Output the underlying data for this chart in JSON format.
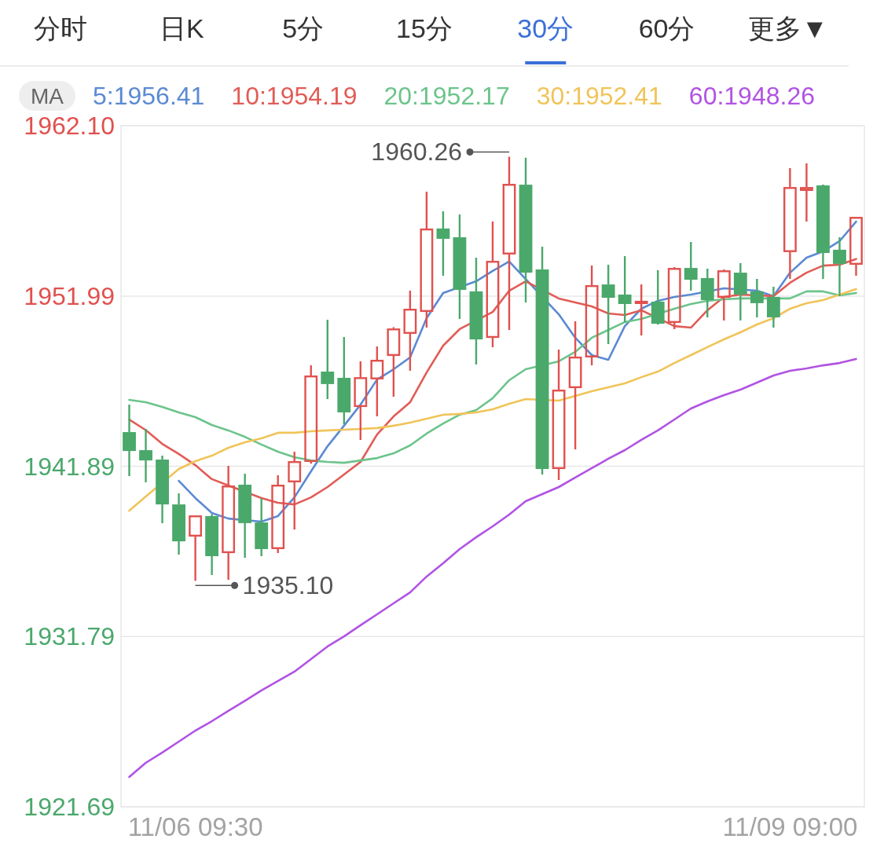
{
  "chart_data": {
    "type": "candlestick",
    "annotations": [
      "分时",
      "日K",
      "5分",
      "15分",
      "30分",
      "60分",
      "更多▼",
      "1960.26",
      "1935.10"
    ],
    "legend_title": "MA",
    "legend": "top",
    "grid": "y",
    "categories": [
      null,
      null,
      null,
      null,
      "11/06 09:30",
      null,
      null,
      null,
      null,
      null,
      null,
      null,
      null,
      null,
      null,
      null,
      null,
      null,
      null,
      null,
      null,
      null,
      null,
      null,
      null,
      null,
      null,
      null,
      null,
      null,
      null,
      null,
      null,
      null,
      null,
      null,
      null,
      null,
      null,
      null,
      "11/09 09:00",
      null,
      null,
      null,
      null
    ],
    "ylim": [
      1921.69,
      1962.1
    ],
    "yticks": [
      1921.69,
      1931.79,
      1941.89,
      1951.99,
      {
        "value": 1962.1,
        "label": "1962.10"
      }
    ],
    "ohlc": [
      [
        1943.92,
        1945.55,
        1941.31,
        1942.8
      ],
      [
        1942.85,
        1944.11,
        1940.94,
        1942.24
      ],
      [
        1942.29,
        1942.52,
        1938.52,
        1939.63
      ],
      [
        1939.63,
        1940.29,
        1936.65,
        1937.44
      ],
      [
        1937.72,
        1938.98,
        1935.1,
        1938.98
      ],
      [
        1938.94,
        1939.05,
        1935.44,
        1936.56
      ],
      [
        1936.74,
        1941.92,
        1935.16,
        1940.75
      ],
      [
        1940.8,
        1941.45,
        1936.46,
        1938.52
      ],
      [
        1938.56,
        1940.0,
        1936.56,
        1936.98
      ],
      [
        1936.98,
        1941.36,
        1936.74,
        1940.8
      ],
      [
        1940.94,
        1942.76,
        1938.14,
        1942.2
      ],
      [
        1942.15,
        1947.88,
        1942.05,
        1947.28
      ],
      [
        1947.51,
        1950.59,
        1945.88,
        1946.77
      ],
      [
        1947.14,
        1949.56,
        1944.39,
        1945.09
      ],
      [
        1945.41,
        1948.12,
        1943.46,
        1947.18
      ],
      [
        1947.05,
        1949.0,
        1944.85,
        1948.21
      ],
      [
        1948.44,
        1950.15,
        1946.02,
        1950.07
      ],
      [
        1949.75,
        1952.31,
        1947.56,
        1951.24
      ],
      [
        1951.05,
        1958.18,
        1950.12,
        1956.0
      ],
      [
        1956.0,
        1957.02,
        1953.2,
        1955.39
      ],
      [
        1955.48,
        1956.83,
        1950.63,
        1952.36
      ],
      [
        1952.27,
        1954.27,
        1947.93,
        1949.42
      ],
      [
        1949.51,
        1956.41,
        1948.96,
        1954.08
      ],
      [
        1954.46,
        1960.26,
        1949.98,
        1958.65
      ],
      [
        1958.6,
        1960.2,
        1951.61,
        1953.38
      ],
      [
        1953.57,
        1954.92,
        1941.41,
        1941.73
      ],
      [
        1941.73,
        1948.82,
        1941.08,
        1946.44
      ],
      [
        1946.53,
        1950.49,
        1942.9,
        1948.4
      ],
      [
        1948.35,
        1953.8,
        1947.88,
        1952.64
      ],
      [
        1952.68,
        1953.85,
        1949.14,
        1951.89
      ],
      [
        1952.08,
        1954.36,
        1950.45,
        1951.52
      ],
      [
        1951.52,
        1952.68,
        1949.66,
        1951.71
      ],
      [
        1951.66,
        1953.52,
        1950.3,
        1950.35
      ],
      [
        1950.4,
        1953.71,
        1950.03,
        1953.66
      ],
      [
        1953.66,
        1955.2,
        1952.31,
        1952.96
      ],
      [
        1953.06,
        1953.62,
        1950.73,
        1951.75
      ],
      [
        1951.89,
        1953.57,
        1950.54,
        1953.52
      ],
      [
        1953.38,
        1953.94,
        1950.54,
        1952.08
      ],
      [
        1952.27,
        1953.01,
        1950.73,
        1951.57
      ],
      [
        1951.94,
        1952.54,
        1950.12,
        1950.73
      ],
      [
        1954.6,
        1959.58,
        1953.01,
        1958.46
      ],
      [
        1958.23,
        1959.86,
        1956.41,
        1958.46
      ],
      [
        1958.56,
        1958.6,
        1953.01,
        1954.55
      ],
      [
        1954.74,
        1955.48,
        1951.99,
        1953.9
      ],
      [
        1953.85,
        1956.69,
        1953.2,
        1956.69
      ]
    ],
    "series": [
      {
        "name": "5:1956.41",
        "type": "line",
        "color": "#5b8ad3",
        "values": [
          null,
          null,
          null,
          1941.03,
          1940.01,
          1939.12,
          1938.79,
          null,
          1938.61,
          1938.94,
          1940.05,
          1941.59,
          1943.08,
          1944.3,
          1945.55,
          1947.04,
          1947.65,
          1948.35,
          1950.68,
          1952.17,
          null,
          1952.87,
          1953.48,
          1954.04,
          null,
          null,
          1950.91,
          1949.52,
          1948.49,
          1948.21,
          1950.21,
          1951.24,
          1951.71,
          1951.94,
          1952.08,
          null,
          1952.45,
          null,
          1952.31,
          1951.99,
          1953.38,
          1954.27,
          1954.64,
          1955.25,
          1956.41
        ]
      },
      {
        "name": "10:1954.19",
        "type": "line",
        "color": "#e15c57",
        "values": [
          1944.66,
          1944.04,
          1943.22,
          1942.62,
          1941.96,
          1941.13,
          1940.75,
          null,
          1940.01,
          1939.73,
          1939.63,
          1940.05,
          1940.66,
          1941.41,
          1942.15,
          1943.78,
          1944.85,
          1945.69,
          1947.46,
          1949.05,
          1950.03,
          null,
          1951.05,
          1952.31,
          1952.87,
          null,
          1951.85,
          1951.61,
          1951.38,
          1950.96,
          1950.87,
          1951.15,
          null,
          1950.21,
          1950.12,
          1951.15,
          1951.94,
          1952.08,
          null,
          1951.99,
          1952.78,
          1953.38,
          1953.8,
          1953.85,
          1954.19
        ]
      },
      {
        "name": "20:1952.17",
        "type": "line",
        "color": "#6cc48b",
        "values": [
          1945.83,
          1945.69,
          1945.41,
          1945.09,
          1944.81,
          1944.34,
          1944.02,
          1943.64,
          1943.18,
          1942.76,
          1942.43,
          1942.24,
          1942.15,
          1942.1,
          1942.24,
          1942.38,
          1942.66,
          1943.13,
          1943.83,
          1944.43,
          1944.95,
          1945.23,
          1945.93,
          1947.0,
          1947.65,
          null,
          1948.12,
          1948.68,
          1949.52,
          1949.98,
          1950.45,
          1950.63,
          null,
          1951.24,
          1951.52,
          1951.71,
          1951.8,
          1951.85,
          null,
          null,
          1951.85,
          1952.27,
          1952.27,
          1952.03,
          1952.17
        ]
      },
      {
        "name": "30:1952.41",
        "type": "line",
        "color": "#f0c459",
        "values": [
          1939.26,
          1940.1,
          null,
          1941.73,
          1942.2,
          1942.52,
          1942.99,
          1943.32,
          1943.55,
          1943.88,
          1943.88,
          1943.97,
          1944.02,
          1944.06,
          1944.11,
          1944.16,
          1944.3,
          1944.48,
          1944.71,
          1944.95,
          1945.0,
          1945.09,
          1945.27,
          1945.6,
          1945.88,
          null,
          1945.79,
          1946.07,
          1946.35,
          1946.58,
          1946.81,
          1947.18,
          1947.51,
          1948.02,
          1948.49,
          1948.96,
          1949.42,
          1949.84,
          1950.31,
          1950.68,
          1951.24,
          1951.57,
          1951.75,
          1952.08,
          1952.41
        ]
      },
      {
        "name": "60:1948.26",
        "type": "line",
        "color": "#b153e3",
        "values": [
          1923.46,
          1924.3,
          1924.91,
          1925.56,
          1926.21,
          1926.77,
          1927.38,
          1927.98,
          1928.59,
          1929.15,
          1929.71,
          1930.45,
          1931.2,
          1931.8,
          1932.46,
          1933.11,
          1933.76,
          1934.41,
          1935.35,
          1936.14,
          1936.98,
          1937.68,
          1938.33,
          1939.03,
          1939.82,
          1940.24,
          1940.66,
          1941.22,
          1941.78,
          1942.34,
          1942.85,
          1943.46,
          1944.02,
          1944.67,
          1945.32,
          1945.74,
          1946.11,
          1946.44,
          1946.86,
          1947.28,
          1947.56,
          1947.7,
          1947.88,
          1948.02,
          1948.26
        ]
      }
    ]
  }
}
